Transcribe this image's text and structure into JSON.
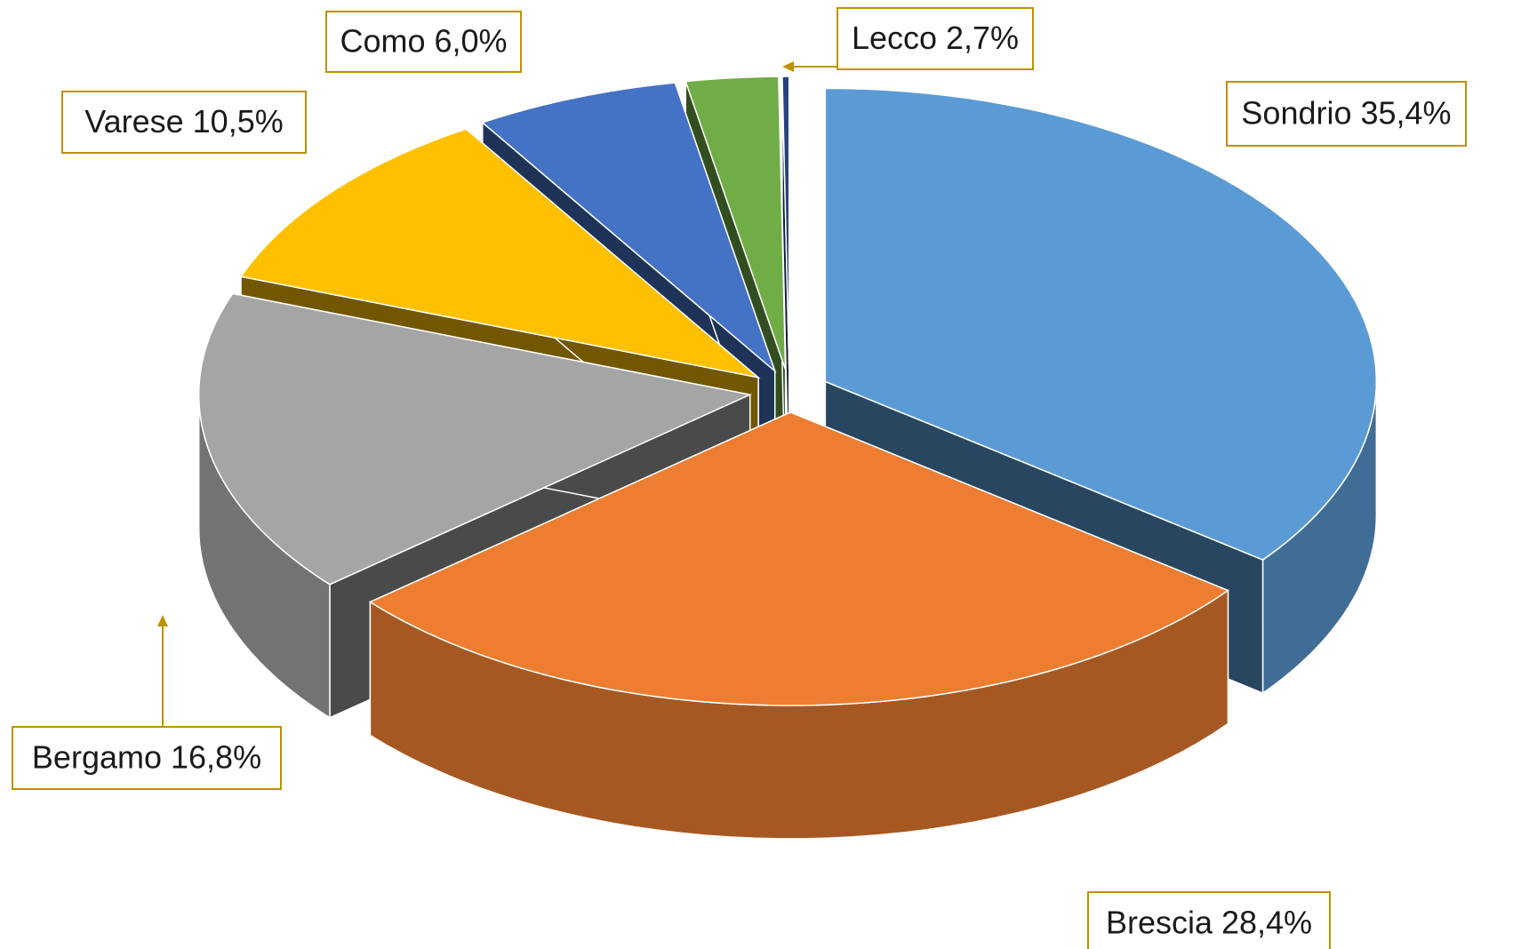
{
  "chart_data": {
    "type": "pie3d",
    "values": [
      35.4,
      28.4,
      16.8,
      10.5,
      6.0,
      2.7,
      0.2
    ],
    "value_labels": [
      "Sondrio 35,4%",
      "Brescia 28,4%",
      "Bergamo 16,8%",
      "Varese 10,5%",
      "Como 6,0%",
      "Lecco 2,7%",
      null
    ],
    "colors": [
      "#5b9bd5",
      "#ed7d31",
      "#a5a5a5",
      "#ffc000",
      "#4472c4",
      "#70ad47",
      "#264478"
    ],
    "label_border_color": "#bf9000"
  }
}
